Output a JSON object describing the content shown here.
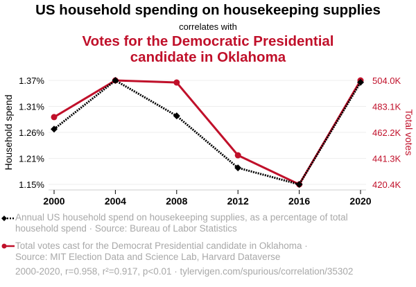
{
  "header": {
    "title": "US household spending on housekeeping supplies",
    "subtitle": "correlates with",
    "title2_line1": "Votes for the Democratic Presidential",
    "title2_line2": "candidate in Oklahoma"
  },
  "colors": {
    "series1": "#000000",
    "series2": "#c0102a",
    "muted": "#a8a8a8",
    "grid": "#eeeeee"
  },
  "chart_data": {
    "type": "line",
    "title": "US household spending on housekeeping supplies correlates with Votes for the Democratic Presidential candidate in Oklahoma",
    "x": [
      2000,
      2004,
      2008,
      2012,
      2016,
      2020
    ],
    "xticks": [
      "2000",
      "2004",
      "2008",
      "2012",
      "2016",
      "2020"
    ],
    "ylabel": "Household spend",
    "y2label": "Total votes",
    "yticks": [
      "1.37%",
      "1.31%",
      "1.26%",
      "1.21%",
      "1.15%"
    ],
    "y2ticks": [
      "504.0K",
      "483.1K",
      "462.2K",
      "441.3K",
      "420.4K"
    ],
    "ylim": [
      1.15,
      1.37
    ],
    "y2lim": [
      420.4,
      504.0
    ],
    "grid": true,
    "series": [
      {
        "name": "Annual US household spend on housekeeping supplies, as a percentage of total household spend",
        "axis": "left",
        "unit": "%",
        "style": "dotted-diamond",
        "values": [
          1.267,
          1.37,
          1.295,
          1.185,
          1.15,
          1.366
        ]
      },
      {
        "name": "Total votes cast for the Democrat Presidential candidate in Oklahoma",
        "axis": "right",
        "unit": "K votes",
        "style": "solid-circle",
        "values": [
          474.5,
          504.0,
          502.3,
          443.8,
          420.4,
          504.0
        ]
      }
    ]
  },
  "legend": {
    "item1_line1": "Annual US household spend on housekeeping supplies, as a percentage of total",
    "item1_line2": "household spend · Source: Bureau of Labor Statistics",
    "item2_line1": "Total votes cast for the Democrat Presidential candidate in Oklahoma ·",
    "item2_line2": "Source: MIT Election Data and Science Lab, Harvard Dataverse"
  },
  "footer": "2000-2020, r=0.958, r²=0.917, p<0.01 · tylervigen.com/spurious/correlation/35302"
}
